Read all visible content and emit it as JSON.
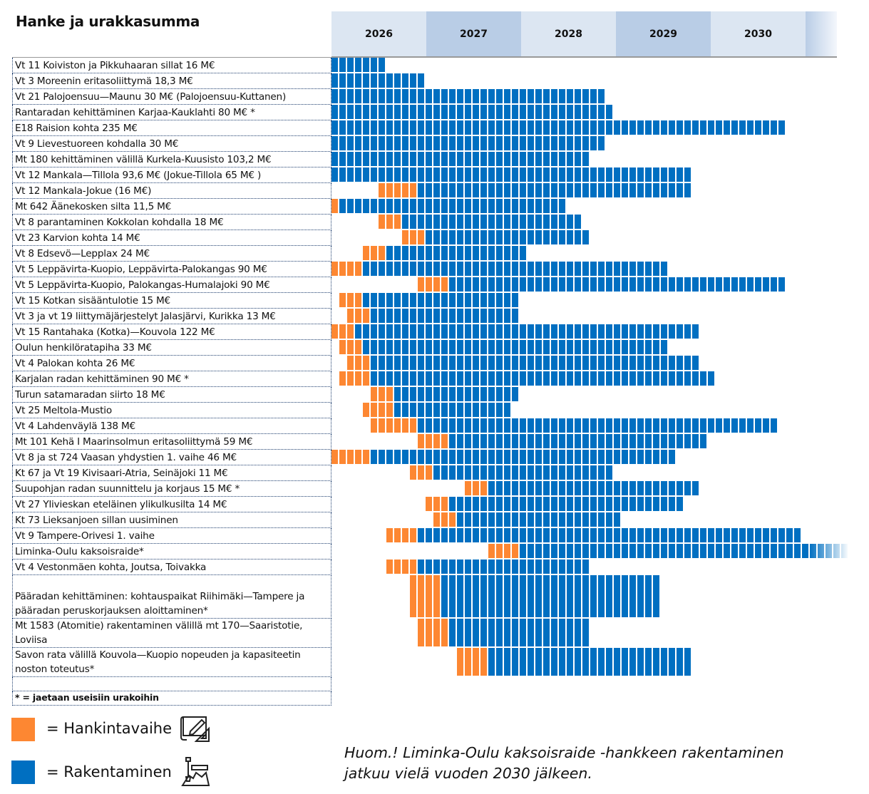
{
  "title": "Hanke ja urakkasumma",
  "chart_data": {
    "type": "gantt",
    "title": "Hanke ja urakkasumma",
    "time_unit": "month",
    "years": [
      "2026",
      "2027",
      "2028",
      "2029",
      "2030"
    ],
    "timeline_start": "2026-01",
    "colors": {
      "hankintavaihe": "#fd8732",
      "rakentaminen": "#006fc1"
    },
    "rows": [
      {
        "label": "Vt 11 Koiviston ja Pikkuhaaran sillat 16 M€",
        "procurement": null,
        "construction": [
          "2026-01",
          "2026-07"
        ]
      },
      {
        "label": "Vt 3 Moreenin eritasoliittymä 18,3 M€",
        "procurement": null,
        "construction": [
          "2026-01",
          "2026-12"
        ]
      },
      {
        "label": "Vt 21 Palojoensuu—Maunu 30 M€ (Palojoensuu-Kuttanen)",
        "procurement": null,
        "construction": [
          "2026-01",
          "2028-11"
        ]
      },
      {
        "label": "Rantaradan kehittäminen  Karjaa-Kauklahti 80 M€ *",
        "procurement": null,
        "construction": [
          "2026-01",
          "2028-12"
        ]
      },
      {
        "label": "E18 Raision kohta 235 M€",
        "procurement": null,
        "construction": [
          "2026-01",
          "2030-10"
        ]
      },
      {
        "label": "Vt 9 Lievestuoreen kohdalla 30 M€",
        "procurement": null,
        "construction": [
          "2026-01",
          "2028-11"
        ]
      },
      {
        "label": "Mt 180 kehittäminen välillä Kurkela-Kuusisto 103,2 M€",
        "procurement": null,
        "construction": [
          "2026-01",
          "2028-09"
        ]
      },
      {
        "label": "Vt 12 Mankala—Tillola 93,6 M€ (Jokue-Tillola 65 M€ )",
        "procurement": null,
        "construction": [
          "2026-01",
          "2029-10"
        ]
      },
      {
        "label": "Vt 12 Mankala-Jokue (16 M€)",
        "procurement": [
          "2026-07",
          "2026-11"
        ],
        "construction": [
          "2026-12",
          "2029-10"
        ]
      },
      {
        "label": "Mt 642 Äänekosken silta 11,5 M€",
        "procurement": [
          "2026-01",
          "2026-01"
        ],
        "construction": [
          "2026-02",
          "2028-06"
        ]
      },
      {
        "label": "Vt 8 parantaminen Kokkolan kohdalla 18 M€",
        "procurement": [
          "2026-07",
          "2026-09"
        ],
        "construction": [
          "2026-10",
          "2028-08"
        ]
      },
      {
        "label": "Vt 23 Karvion kohta 14 M€",
        "procurement": [
          "2026-10",
          "2026-12"
        ],
        "construction": [
          "2027-01",
          "2028-09"
        ]
      },
      {
        "label": "Vt 8 Edsevö—Lepplax 24 M€",
        "procurement": [
          "2026-05",
          "2026-07"
        ],
        "construction": [
          "2026-08",
          "2028-01"
        ]
      },
      {
        "label": "Vt 5 Leppävirta-Kuopio, Leppävirta-Palokangas 90 M€",
        "procurement": [
          "2026-01",
          "2026-04"
        ],
        "construction": [
          "2026-05",
          "2029-07"
        ]
      },
      {
        "label": "Vt 5 Leppävirta-Kuopio, Palokangas-Humalajoki 90 M€",
        "procurement": [
          "2026-12",
          "2027-03"
        ],
        "construction": [
          "2027-04",
          "2030-10"
        ]
      },
      {
        "label": "Vt 15 Kotkan sisääntulotie 15 M€",
        "procurement": [
          "2026-02",
          "2026-04"
        ],
        "construction": [
          "2026-05",
          "2027-12"
        ]
      },
      {
        "label": "Vt 3 ja vt 19 liittymäjärjestelyt Jalasjärvi, Kurikka 13 M€",
        "procurement": [
          "2026-03",
          "2026-05"
        ],
        "construction": [
          "2026-06",
          "2027-12"
        ]
      },
      {
        "label": "Vt 15 Rantahaka (Kotka)—Kouvola 122 M€",
        "procurement": [
          "2026-01",
          "2026-03"
        ],
        "construction": [
          "2026-04",
          "2029-11"
        ]
      },
      {
        "label": "Oulun henkilöratapiha 33 M€",
        "procurement": [
          "2026-02",
          "2026-04"
        ],
        "construction": [
          "2026-05",
          "2029-07"
        ]
      },
      {
        "label": "Vt 4 Palokan kohta 26 M€",
        "procurement": [
          "2026-03",
          "2026-05"
        ],
        "construction": [
          "2026-06",
          "2029-11"
        ]
      },
      {
        "label": "Karjalan radan kehittäminen 90 M€ *",
        "procurement": [
          "2026-02",
          "2026-05"
        ],
        "construction": [
          "2026-06",
          "2030-01"
        ]
      },
      {
        "label": "Turun satamaradan siirto 18 M€",
        "procurement": [
          "2026-06",
          "2026-08"
        ],
        "construction": [
          "2026-09",
          "2027-12"
        ]
      },
      {
        "label": "Vt 25 Meltola-Mustio",
        "procurement": [
          "2026-05",
          "2026-08"
        ],
        "construction": [
          "2026-09",
          "2027-11"
        ]
      },
      {
        "label": "Vt 4 Lahdenväylä 138 M€",
        "procurement": [
          "2026-06",
          "2026-11"
        ],
        "construction": [
          "2026-12",
          "2030-09"
        ]
      },
      {
        "label": "Mt 101 Kehä I Maarinsolmun eritasoliittymä 59 M€",
        "procurement": [
          "2026-12",
          "2027-03"
        ],
        "construction": [
          "2027-04",
          "2029-12"
        ]
      },
      {
        "label": "Vt 8 ja st 724 Vaasan yhdystien 1. vaihe 46 M€",
        "procurement": [
          "2026-01",
          "2026-05"
        ],
        "construction": [
          "2026-06",
          "2029-08"
        ]
      },
      {
        "label": "Kt 67 ja Vt 19 Kivisaari-Atria, Seinäjoki 11 M€",
        "procurement": [
          "2026-11",
          "2027-01"
        ],
        "construction": [
          "2027-02",
          "2028-12"
        ]
      },
      {
        "label": "Suupohjan radan suunnittelu ja korjaus 15 M€ *",
        "procurement": [
          "2027-06",
          "2027-08"
        ],
        "construction": [
          "2027-09",
          "2029-11"
        ]
      },
      {
        "label": "Vt 27 Ylivieskan eteläinen ylikulkusilta 14 M€",
        "procurement": [
          "2027-01",
          "2027-03"
        ],
        "construction": [
          "2027-04",
          "2029-09"
        ]
      },
      {
        "label": "Kt 73 Lieksanjoen sillan uusiminen",
        "procurement": [
          "2027-02",
          "2027-04"
        ],
        "construction": [
          "2027-05",
          "2029-01"
        ]
      },
      {
        "label": "Vt 9 Tampere-Orivesi 1. vaihe",
        "procurement": [
          "2026-08",
          "2026-11"
        ],
        "construction": [
          "2026-12",
          "2030-12"
        ]
      },
      {
        "label": "Liminka-Oulu kaksoisraide*",
        "procurement": [
          "2027-09",
          "2027-12"
        ],
        "construction": [
          "2028-01",
          "2030-12+"
        ]
      },
      {
        "label": "Vt 4 Vestonmäen kohta, Joutsa, Toivakka",
        "procurement": [
          "2026-08",
          "2026-11"
        ],
        "construction": [
          "2026-12",
          "2028-09"
        ]
      },
      {
        "label": "Pääradan kehittäminen: kohtauspaikat Riihimäki—Tampere ja pääradan peruskorjauksen aloittaminen*",
        "procurement": [
          "2026-11",
          "2027-02"
        ],
        "construction": [
          "2027-03",
          "2029-06"
        ]
      },
      {
        "label": "Mt 1583 (Atomitie) rakentaminen välillä mt 170—Saaristotie, Loviisa",
        "procurement": [
          "2026-12",
          "2027-03"
        ],
        "construction": [
          "2027-04",
          "2028-09"
        ]
      },
      {
        "label": "Savon rata välillä Kouvola—Kuopio nopeuden ja kapasiteetin noston toteutus*",
        "procurement": [
          "2027-05",
          "2027-08"
        ],
        "construction": [
          "2027-09",
          "2029-10"
        ]
      }
    ],
    "bars_months": [
      [
        null,
        [
          0,
          7
        ]
      ],
      [
        null,
        [
          0,
          12
        ]
      ],
      [
        null,
        [
          0,
          35
        ]
      ],
      [
        null,
        [
          0,
          36
        ]
      ],
      [
        null,
        [
          0,
          58
        ]
      ],
      [
        null,
        [
          0,
          35
        ]
      ],
      [
        null,
        [
          0,
          33
        ]
      ],
      [
        null,
        [
          0,
          46
        ]
      ],
      [
        [
          6,
          11
        ],
        [
          11,
          46
        ]
      ],
      [
        [
          0,
          1
        ],
        [
          1,
          30
        ]
      ],
      [
        [
          6,
          9
        ],
        [
          9,
          32
        ]
      ],
      [
        [
          9,
          12
        ],
        [
          12,
          33
        ]
      ],
      [
        [
          4,
          7
        ],
        [
          7,
          25
        ]
      ],
      [
        [
          0,
          4
        ],
        [
          4,
          43
        ]
      ],
      [
        [
          11,
          15
        ],
        [
          15,
          58
        ]
      ],
      [
        [
          1,
          4
        ],
        [
          4,
          24
        ]
      ],
      [
        [
          2,
          5
        ],
        [
          5,
          24
        ]
      ],
      [
        [
          0,
          3
        ],
        [
          3,
          47
        ]
      ],
      [
        [
          1,
          4
        ],
        [
          4,
          43
        ]
      ],
      [
        [
          2,
          5
        ],
        [
          5,
          47
        ]
      ],
      [
        [
          1,
          5
        ],
        [
          5,
          49
        ]
      ],
      [
        [
          5,
          8
        ],
        [
          8,
          24
        ]
      ],
      [
        [
          4,
          8
        ],
        [
          8,
          23
        ]
      ],
      [
        [
          5,
          11
        ],
        [
          11,
          57
        ]
      ],
      [
        [
          11,
          15
        ],
        [
          15,
          48
        ]
      ],
      [
        [
          0,
          5
        ],
        [
          5,
          44
        ]
      ],
      [
        [
          10,
          13
        ],
        [
          13,
          36
        ]
      ],
      [
        [
          17,
          20
        ],
        [
          20,
          47
        ]
      ],
      [
        [
          12,
          15
        ],
        [
          15,
          45
        ]
      ],
      [
        [
          13,
          16
        ],
        [
          16,
          37
        ]
      ],
      [
        [
          7,
          11
        ],
        [
          11,
          60
        ]
      ],
      [
        [
          20,
          24
        ],
        [
          24,
          66
        ]
      ],
      [
        [
          7,
          11
        ],
        [
          11,
          33
        ]
      ],
      [
        [
          10,
          14
        ],
        [
          14,
          42
        ]
      ],
      [
        [
          11,
          15
        ],
        [
          15,
          33
        ]
      ],
      [
        [
          16,
          20
        ],
        [
          20,
          46
        ]
      ]
    ],
    "continues_beyond": "Liminka-Oulu kaksoisraide*",
    "footnote": "* = jaetaan useisiin urakoihin",
    "legend": [
      {
        "label": "= Hankintavaihe",
        "color": "#fd8732",
        "icon": "blueprint-pencil-icon"
      },
      {
        "label": "= Rakentaminen",
        "color": "#006fc1",
        "icon": "construction-shovel-icon"
      }
    ],
    "legend_placement": "bottom-left",
    "note": [
      "Huom.! Liminka-Oulu kaksoisraide -hankkeen rakentaminen",
      "jatkuu vielä vuoden 2030 jälkeen."
    ]
  }
}
